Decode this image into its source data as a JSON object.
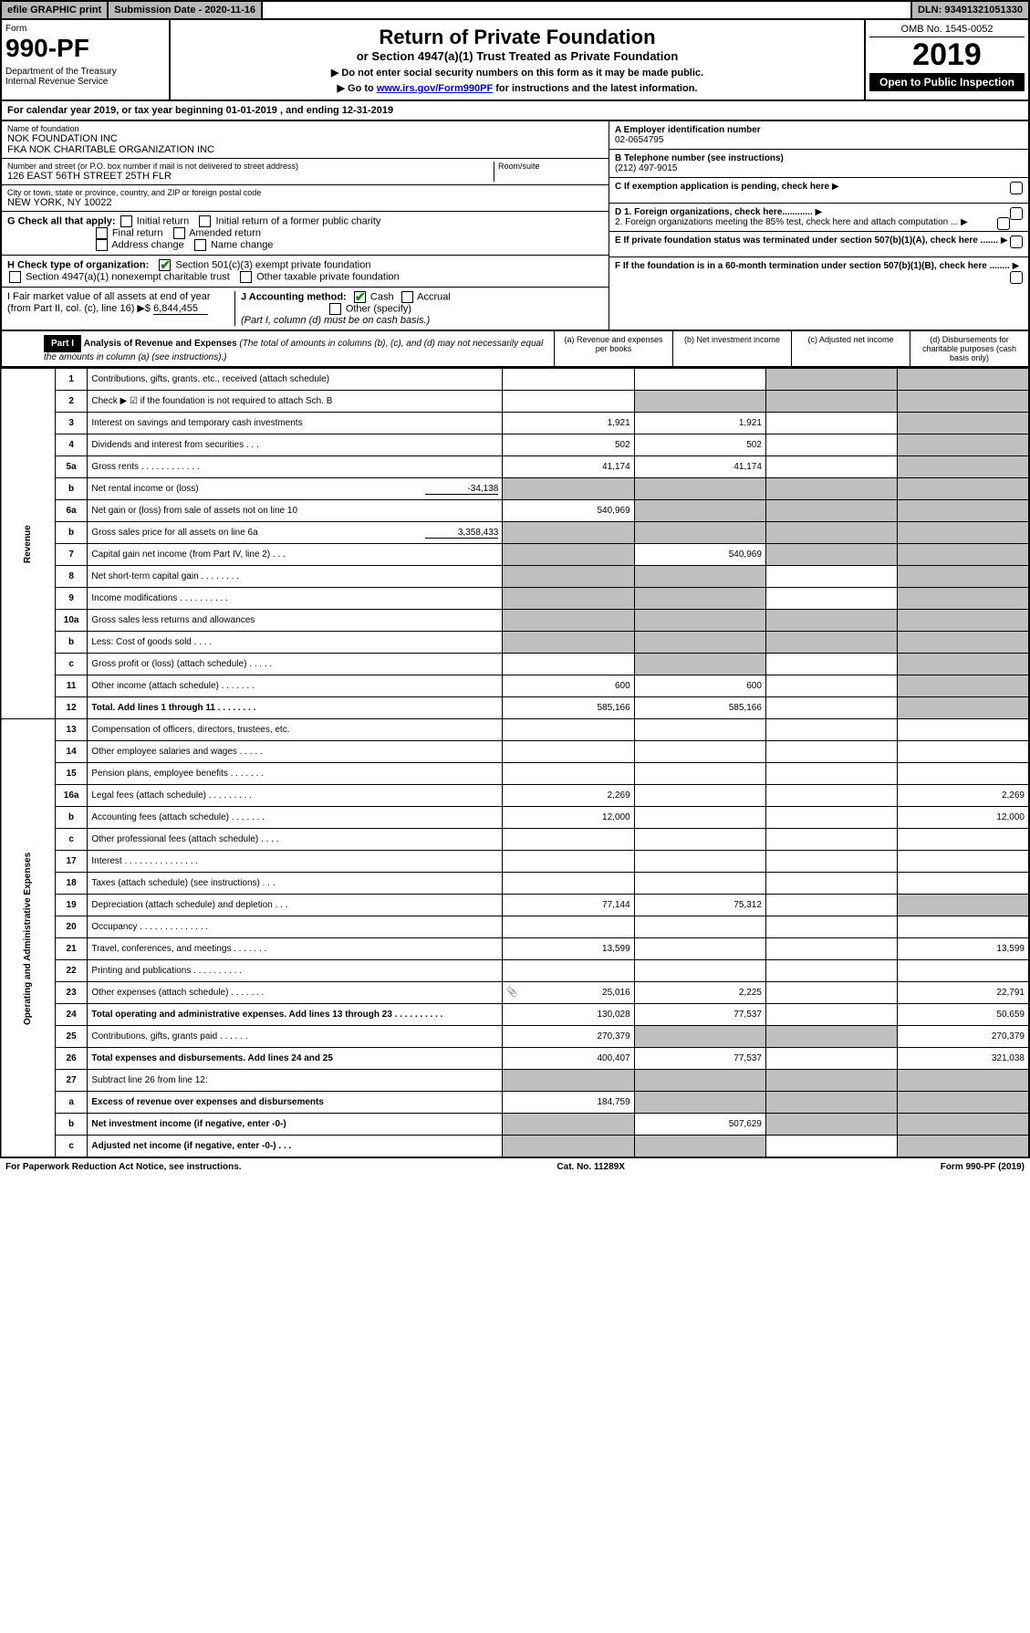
{
  "top": {
    "efile": "efile GRAPHIC print",
    "sub_label": "Submission Date - 2020-11-16",
    "dln": "DLN: 93491321051330"
  },
  "header": {
    "form_label": "Form",
    "form_num": "990-PF",
    "dept": "Department of the Treasury\nInternal Revenue Service",
    "title": "Return of Private Foundation",
    "subtitle": "or Section 4947(a)(1) Trust Treated as Private Foundation",
    "note1": "▶ Do not enter social security numbers on this form as it may be made public.",
    "note2_pre": "▶ Go to ",
    "note2_link": "www.irs.gov/Form990PF",
    "note2_post": " for instructions and the latest information.",
    "omb": "OMB No. 1545-0052",
    "year": "2019",
    "open": "Open to Public Inspection"
  },
  "cal": "For calendar year 2019, or tax year beginning 01-01-2019                      , and ending 12-31-2019",
  "entity": {
    "name_label": "Name of foundation",
    "name1": "NOK FOUNDATION INC",
    "name2": "FKA NOK CHARITABLE ORGANIZATION INC",
    "addr_label": "Number and street (or P.O. box number if mail is not delivered to street address)",
    "addr": "126 EAST 56TH STREET 25TH FLR",
    "room_label": "Room/suite",
    "city_label": "City or town, state or province, country, and ZIP or foreign postal code",
    "city": "NEW YORK, NY  10022",
    "a_label": "A Employer identification number",
    "ein": "02-0654795",
    "b_label": "B Telephone number (see instructions)",
    "phone": "(212) 497-9015",
    "c_label": "C If exemption application is pending, check here",
    "d1": "D 1. Foreign organizations, check here............",
    "d2": "2. Foreign organizations meeting the 85% test, check here and attach computation ...",
    "e_label": "E  If private foundation status was terminated under section 507(b)(1)(A), check here .......",
    "f_label": "F  If the foundation is in a 60-month termination under section 507(b)(1)(B), check here ........"
  },
  "g": {
    "label": "G Check all that apply:",
    "opts": [
      "Initial return",
      "Initial return of a former public charity",
      "Final return",
      "Amended return",
      "Address change",
      "Name change"
    ]
  },
  "h": {
    "label": "H Check type of organization:",
    "opt1": "Section 501(c)(3) exempt private foundation",
    "opt2": "Section 4947(a)(1) nonexempt charitable trust",
    "opt3": "Other taxable private foundation"
  },
  "i": {
    "label": "I Fair market value of all assets at end of year (from Part II, col. (c), line 16) ▶$",
    "val": "6,844,455"
  },
  "j": {
    "label": "J Accounting method:",
    "cash": "Cash",
    "accrual": "Accrual",
    "other": "Other (specify)",
    "note": "(Part I, column (d) must be on cash basis.)"
  },
  "part1": {
    "label": "Part I",
    "title": "Analysis of Revenue and Expenses",
    "note": "(The total of amounts in columns (b), (c), and (d) may not necessarily equal the amounts in column (a) (see instructions).)",
    "col_a": "(a)    Revenue and expenses per books",
    "col_b": "(b)  Net investment income",
    "col_c": "(c)  Adjusted net income",
    "col_d": "(d)  Disbursements for charitable purposes (cash basis only)"
  },
  "sections": {
    "revenue": "Revenue",
    "expenses": "Operating and Administrative Expenses"
  },
  "rows": [
    {
      "n": "1",
      "d": "Contributions, gifts, grants, etc., received (attach schedule)",
      "a": "",
      "b": "",
      "c": "s",
      "dd": "s"
    },
    {
      "n": "2",
      "d": "Check ▶ ☑ if the foundation is not required to attach Sch. B",
      "a": "",
      "b": "s",
      "c": "s",
      "dd": "s",
      "bold_not": true
    },
    {
      "n": "3",
      "d": "Interest on savings and temporary cash investments",
      "a": "1,921",
      "b": "1,921",
      "c": "",
      "dd": "s"
    },
    {
      "n": "4",
      "d": "Dividends and interest from securities    .   .   .",
      "a": "502",
      "b": "502",
      "c": "",
      "dd": "s"
    },
    {
      "n": "5a",
      "d": "Gross rents       .   .   .   .   .   .   .   .   .   .   .   .",
      "a": "41,174",
      "b": "41,174",
      "c": "",
      "dd": "s"
    },
    {
      "n": "b",
      "d": "Net rental income or (loss)",
      "inline": "-34,138",
      "a": "s",
      "b": "s",
      "c": "s",
      "dd": "s"
    },
    {
      "n": "6a",
      "d": "Net gain or (loss) from sale of assets not on line 10",
      "a": "540,969",
      "b": "s",
      "c": "s",
      "dd": "s"
    },
    {
      "n": "b",
      "d": "Gross sales price for all assets on line 6a",
      "inline": "3,358,433",
      "a": "s",
      "b": "s",
      "c": "s",
      "dd": "s"
    },
    {
      "n": "7",
      "d": "Capital gain net income (from Part IV, line 2)    .   .   .",
      "a": "s",
      "b": "540,969",
      "c": "s",
      "dd": "s"
    },
    {
      "n": "8",
      "d": "Net short-term capital gain   .   .   .   .   .   .   .   .",
      "a": "s",
      "b": "s",
      "c": "",
      "dd": "s"
    },
    {
      "n": "9",
      "d": "Income modifications   .   .   .   .   .   .   .   .   .   .",
      "a": "s",
      "b": "s",
      "c": "",
      "dd": "s"
    },
    {
      "n": "10a",
      "d": "Gross sales less returns and allowances",
      "a": "s",
      "b": "s",
      "c": "s",
      "dd": "s"
    },
    {
      "n": "b",
      "d": "Less: Cost of goods sold       .   .   .   .",
      "a": "s",
      "b": "s",
      "c": "s",
      "dd": "s"
    },
    {
      "n": "c",
      "d": "Gross profit or (loss) (attach schedule)    .   .   .   .   .",
      "a": "",
      "b": "s",
      "c": "",
      "dd": "s"
    },
    {
      "n": "11",
      "d": "Other income (attach schedule)    .   .   .   .   .   .   .",
      "a": "600",
      "b": "600",
      "c": "",
      "dd": "s"
    },
    {
      "n": "12",
      "d": "Total. Add lines 1 through 11    .   .   .   .   .   .   .   .",
      "a": "585,166",
      "b": "585,166",
      "c": "",
      "dd": "s",
      "bold": true
    },
    {
      "n": "13",
      "d": "Compensation of officers, directors, trustees, etc.",
      "a": "",
      "b": "",
      "c": "",
      "dd": ""
    },
    {
      "n": "14",
      "d": "Other employee salaries and wages     .   .   .   .   .",
      "a": "",
      "b": "",
      "c": "",
      "dd": ""
    },
    {
      "n": "15",
      "d": "Pension plans, employee benefits   .   .   .   .   .   .   .",
      "a": "",
      "b": "",
      "c": "",
      "dd": ""
    },
    {
      "n": "16a",
      "d": "Legal fees (attach schedule)  .   .   .   .   .   .   .   .   .",
      "a": "2,269",
      "b": "",
      "c": "",
      "dd": "2,269"
    },
    {
      "n": "b",
      "d": "Accounting fees (attach schedule)   .   .   .   .   .   .   .",
      "a": "12,000",
      "b": "",
      "c": "",
      "dd": "12,000"
    },
    {
      "n": "c",
      "d": "Other professional fees (attach schedule)    .   .   .   .",
      "a": "",
      "b": "",
      "c": "",
      "dd": ""
    },
    {
      "n": "17",
      "d": "Interest   .   .   .   .   .   .   .   .   .   .   .   .   .   .   .",
      "a": "",
      "b": "",
      "c": "",
      "dd": ""
    },
    {
      "n": "18",
      "d": "Taxes (attach schedule) (see instructions)     .   .   .",
      "a": "",
      "b": "",
      "c": "",
      "dd": ""
    },
    {
      "n": "19",
      "d": "Depreciation (attach schedule) and depletion    .   .   .",
      "a": "77,144",
      "b": "75,312",
      "c": "",
      "dd": "s"
    },
    {
      "n": "20",
      "d": "Occupancy  .   .   .   .   .   .   .   .   .   .   .   .   .   .",
      "a": "",
      "b": "",
      "c": "",
      "dd": ""
    },
    {
      "n": "21",
      "d": "Travel, conferences, and meetings  .   .   .   .   .   .   .",
      "a": "13,599",
      "b": "",
      "c": "",
      "dd": "13,599"
    },
    {
      "n": "22",
      "d": "Printing and publications  .   .   .   .   .   .   .   .   .   .",
      "a": "",
      "b": "",
      "c": "",
      "dd": ""
    },
    {
      "n": "23",
      "d": "Other expenses (attach schedule)   .   .   .   .   .   .   .",
      "a": "25,016",
      "b": "2,225",
      "c": "",
      "dd": "22,791",
      "icon": true
    },
    {
      "n": "24",
      "d": "Total operating and administrative expenses. Add lines 13 through 23   .   .   .   .   .   .   .   .   .   .",
      "a": "130,028",
      "b": "77,537",
      "c": "",
      "dd": "50,659",
      "bold": true
    },
    {
      "n": "25",
      "d": "Contributions, gifts, grants paid      .   .   .   .   .   .",
      "a": "270,379",
      "b": "s",
      "c": "s",
      "dd": "270,379"
    },
    {
      "n": "26",
      "d": "Total expenses and disbursements. Add lines 24 and 25",
      "a": "400,407",
      "b": "77,537",
      "c": "",
      "dd": "321,038",
      "bold": true
    },
    {
      "n": "27",
      "d": "Subtract line 26 from line 12:",
      "a": "s",
      "b": "s",
      "c": "s",
      "dd": "s"
    },
    {
      "n": "a",
      "d": "Excess of revenue over expenses and disbursements",
      "a": "184,759",
      "b": "s",
      "c": "s",
      "dd": "s",
      "bold": true
    },
    {
      "n": "b",
      "d": "Net investment income (if negative, enter -0-)",
      "a": "s",
      "b": "507,629",
      "c": "s",
      "dd": "s",
      "bold": true
    },
    {
      "n": "c",
      "d": "Adjusted net income (if negative, enter -0-)   .   .   .",
      "a": "s",
      "b": "s",
      "c": "",
      "dd": "s",
      "bold": true
    }
  ],
  "footer": {
    "left": "For Paperwork Reduction Act Notice, see instructions.",
    "mid": "Cat. No. 11289X",
    "right": "Form 990-PF (2019)"
  },
  "colors": {
    "shade": "#bfbfbf",
    "link": "#0000cc",
    "check": "#0a8a0a"
  }
}
